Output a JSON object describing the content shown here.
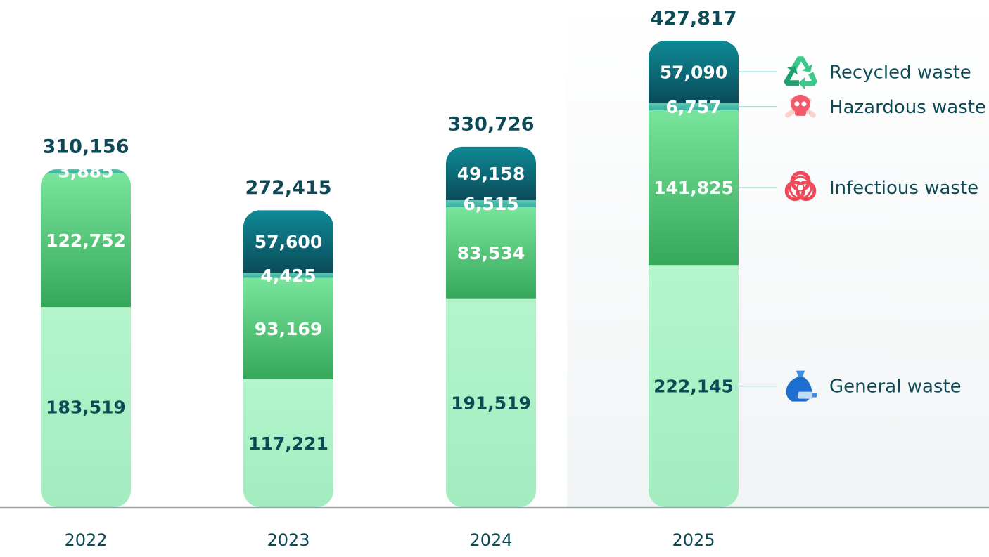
{
  "colors": {
    "general": [
      "#b4f5cb",
      "#a3ecc0"
    ],
    "infectious": [
      "#78e49c",
      "#36a85a"
    ],
    "hazardous": [
      "#58c8b0",
      "#3aaf9e"
    ],
    "recycled": [
      "#0e8a96",
      "#0b4b58"
    ],
    "text_dark": "#0d4a55",
    "text_light": "#ffffff",
    "highlight_bg": "#f1f4f5",
    "baseline": "#9aa5aa"
  },
  "chart_data": {
    "type": "bar",
    "stacked": true,
    "categories": [
      "2022",
      "2023",
      "2024",
      "2025"
    ],
    "series": [
      {
        "key": "general",
        "name": "General waste",
        "icon": "trash-bag-icon",
        "values": [
          183519,
          117221,
          191519,
          222145
        ]
      },
      {
        "key": "infectious",
        "name": "Infectious waste",
        "icon": "biohazard-icon",
        "values": [
          122752,
          93169,
          83534,
          141825
        ]
      },
      {
        "key": "hazardous",
        "name": "Hazardous waste",
        "icon": "skull-crossbones-icon",
        "values": [
          3885,
          4425,
          6515,
          6757
        ]
      },
      {
        "key": "recycled",
        "name": "Recycled waste",
        "icon": "recycle-icon",
        "values": [
          0,
          57600,
          49158,
          57090
        ]
      }
    ],
    "segment_labels": [
      [
        "183,519",
        "117,221",
        "191,519",
        "222,145"
      ],
      [
        "122,752",
        "93,169",
        "83,534",
        "141,825"
      ],
      [
        "3,885",
        "4,425",
        "6,515",
        "6,757"
      ],
      [
        "",
        "57,600",
        "49,158",
        "57,090"
      ]
    ],
    "totals": [
      310156,
      272415,
      330726,
      427817
    ],
    "total_labels": [
      "310,156",
      "272,415",
      "330,726",
      "427,817"
    ],
    "highlighted_category": "2025",
    "legend_position": "right",
    "ylim": [
      0,
      450000
    ],
    "grid": false,
    "xlabel": "",
    "ylabel": "",
    "title": ""
  }
}
